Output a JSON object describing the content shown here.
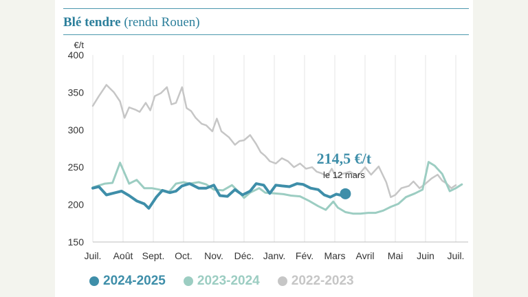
{
  "title": {
    "bold": "Blé tendre",
    "normal": "(rendu Rouen)"
  },
  "chart_data": {
    "type": "line",
    "ylabel": "€/t",
    "ylim": [
      150,
      400
    ],
    "yticks": [
      "400",
      "350",
      "300",
      "250",
      "200",
      "150"
    ],
    "xticks": [
      "Juil.",
      "Août",
      "Sept.",
      "Oct.",
      "Nov.",
      "Déc.",
      "Janv.",
      "Fév.",
      "Mars",
      "Avril",
      "Mai",
      "Juin",
      "Juil."
    ],
    "grid": "vertical",
    "series": [
      {
        "name": "2022-2023",
        "color": "#c6c6c6",
        "x": [
          0,
          0.2,
          0.45,
          0.7,
          0.9,
          1.05,
          1.2,
          1.4,
          1.55,
          1.75,
          1.9,
          2.05,
          2.25,
          2.45,
          2.6,
          2.75,
          2.95,
          3.1,
          3.25,
          3.4,
          3.6,
          3.75,
          3.95,
          4.1,
          4.25,
          4.5,
          4.7,
          4.85,
          5.0,
          5.2,
          5.4,
          5.55,
          5.7,
          5.85,
          6.05,
          6.25,
          6.45,
          6.65,
          6.85,
          7.05,
          7.25,
          7.4,
          7.55,
          7.75,
          7.9,
          8.05,
          8.25,
          8.5,
          8.75,
          9.0,
          9.2,
          9.45,
          9.7,
          9.85,
          10.0,
          10.2,
          10.45,
          10.6,
          10.8,
          11.0,
          11.2,
          11.4,
          11.55,
          11.7,
          11.85,
          12.0
        ],
        "y": [
          332,
          345,
          360,
          350,
          338,
          316,
          330,
          327,
          324,
          336,
          326,
          345,
          349,
          357,
          334,
          336,
          357,
          329,
          325,
          316,
          308,
          306,
          298,
          315,
          298,
          290,
          280,
          285,
          286,
          293,
          281,
          270,
          265,
          258,
          255,
          262,
          258,
          250,
          255,
          248,
          250,
          244,
          242,
          238,
          248,
          236,
          241,
          244,
          238,
          250,
          240,
          251,
          230,
          210,
          213,
          222,
          225,
          231,
          222,
          228,
          235,
          240,
          232,
          228,
          222,
          226
        ]
      },
      {
        "name": "2023-2024",
        "color": "#9ccdc2",
        "x": [
          0,
          0.4,
          0.65,
          0.9,
          1.2,
          1.45,
          1.7,
          1.95,
          2.2,
          2.5,
          2.75,
          3.0,
          3.2,
          3.5,
          3.75,
          4.0,
          4.3,
          4.6,
          4.85,
          5.0,
          5.2,
          5.5,
          5.7,
          6.0,
          6.3,
          6.55,
          6.85,
          7.15,
          7.45,
          7.7,
          7.95,
          8.1,
          8.35,
          8.6,
          8.85,
          9.1,
          9.35,
          9.6,
          9.85,
          10.1,
          10.35,
          10.65,
          10.9,
          11.1,
          11.3,
          11.55,
          11.8,
          12.0,
          12.2
        ],
        "y": [
          223,
          228,
          229,
          256,
          228,
          233,
          222,
          222,
          220,
          216,
          228,
          230,
          228,
          230,
          227,
          220,
          219,
          226,
          216,
          209,
          216,
          222,
          216,
          215,
          214,
          212,
          211,
          205,
          198,
          193,
          204,
          196,
          190,
          188,
          188,
          189,
          189,
          192,
          197,
          201,
          210,
          215,
          220,
          257,
          252,
          241,
          218,
          222,
          227
        ]
      },
      {
        "name": "2024-2025",
        "color": "#3e8ea9",
        "x": [
          0,
          0.2,
          0.45,
          0.75,
          0.95,
          1.2,
          1.45,
          1.7,
          1.85,
          2.1,
          2.3,
          2.55,
          2.75,
          2.95,
          3.2,
          3.5,
          3.75,
          4.0,
          4.2,
          4.45,
          4.7,
          4.95,
          5.2,
          5.4,
          5.65,
          5.85,
          6.05,
          6.25,
          6.5,
          6.75,
          6.95,
          7.2,
          7.45,
          7.65,
          7.85,
          8.05,
          8.25,
          8.35
        ],
        "y": [
          222,
          224,
          213,
          216,
          218,
          212,
          205,
          201,
          195,
          210,
          219,
          216,
          218,
          225,
          228,
          222,
          222,
          226,
          212,
          211,
          220,
          213,
          218,
          228,
          226,
          215,
          226,
          225,
          224,
          228,
          227,
          222,
          220,
          213,
          210,
          214,
          212,
          214.5
        ]
      }
    ],
    "annotation": {
      "value": "214,5 €/t",
      "date": "le 12 mars",
      "x": 8.35,
      "y": 214.5
    }
  },
  "legend": [
    {
      "label": "2024-2025",
      "color": "#3e8ea9"
    },
    {
      "label": "2023-2024",
      "color": "#9ccdc2"
    },
    {
      "label": "2022-2023",
      "color": "#c6c6c6"
    }
  ]
}
